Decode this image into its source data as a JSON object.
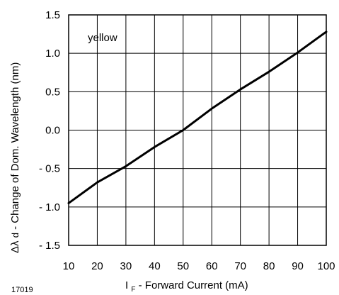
{
  "chart_data": {
    "type": "line",
    "annotation": "yellow",
    "figure_id": "17019",
    "xlabel_main": "I",
    "xlabel_sub": "F",
    "xlabel_rest": " - Forward Current (mA)",
    "ylabel_symbol": "Δλ",
    "ylabel_sub": "d",
    "ylabel_rest": " - Change of Dom. Wavelength (nm)",
    "x_ticks": [
      "10",
      "20",
      "30",
      "40",
      "50",
      "60",
      "70",
      "80",
      "90",
      "100"
    ],
    "y_ticks": [
      "1.5",
      "1.0",
      "0.5",
      "0.0",
      "- 0.5",
      "- 1.0",
      "- 1.5"
    ],
    "xlim": [
      10,
      100
    ],
    "ylim": [
      -1.5,
      1.5
    ],
    "grid": true,
    "series": [
      {
        "x": [
          10,
          20,
          30,
          40,
          50,
          60,
          70,
          80,
          90,
          100
        ],
        "y": [
          -0.95,
          -0.68,
          -0.47,
          -0.22,
          0.0,
          0.28,
          0.53,
          0.76,
          1.01,
          1.28
        ]
      }
    ]
  }
}
